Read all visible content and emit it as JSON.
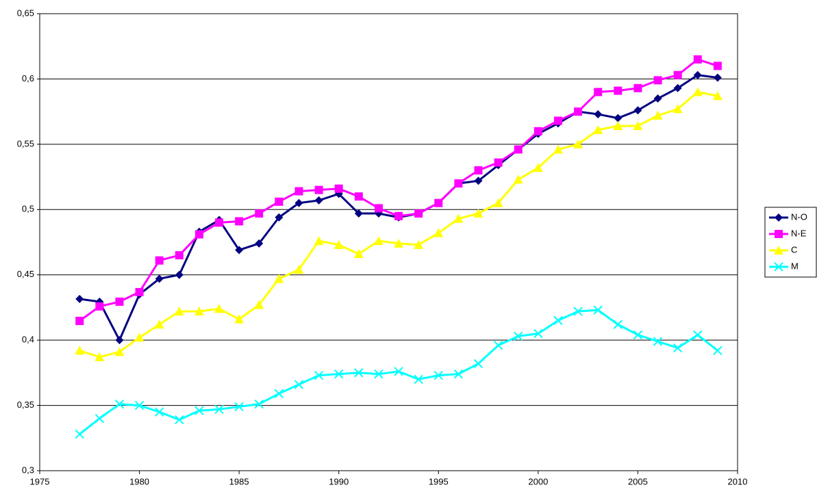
{
  "chart_data": {
    "type": "line",
    "x": [
      1977,
      1978,
      1979,
      1980,
      1981,
      1982,
      1983,
      1984,
      1985,
      1986,
      1987,
      1988,
      1989,
      1990,
      1991,
      1992,
      1993,
      1994,
      1995,
      1996,
      1997,
      1998,
      1999,
      2000,
      2001,
      2002,
      2003,
      2004,
      2005,
      2006,
      2007,
      2008,
      2009
    ],
    "series": [
      {
        "name": "N-O",
        "color": "#000080",
        "marker": "diamond",
        "values": [
          0.4315,
          0.4294,
          0.4,
          0.435,
          0.447,
          0.45,
          0.483,
          0.492,
          0.469,
          0.474,
          0.494,
          0.505,
          0.507,
          0.512,
          0.497,
          0.497,
          0.494,
          0.497,
          0.505,
          0.52,
          0.522,
          0.534,
          0.546,
          0.558,
          0.566,
          0.575,
          0.573,
          0.57,
          0.576,
          0.585,
          0.593,
          0.603,
          0.601
        ]
      },
      {
        "name": "N-E",
        "color": "#ff00ff",
        "marker": "square",
        "values": [
          0.4147,
          0.4258,
          0.4294,
          0.4368,
          0.461,
          0.465,
          0.481,
          0.49,
          0.491,
          0.497,
          0.506,
          0.514,
          0.515,
          0.516,
          0.51,
          0.501,
          0.495,
          0.497,
          0.505,
          0.52,
          0.53,
          0.536,
          0.546,
          0.56,
          0.568,
          0.575,
          0.59,
          0.591,
          0.593,
          0.599,
          0.603,
          0.615,
          0.61
        ]
      },
      {
        "name": "C",
        "color": "#ffff00",
        "marker": "triangle",
        "values": [
          0.392,
          0.387,
          0.391,
          0.402,
          0.412,
          0.422,
          0.422,
          0.424,
          0.416,
          0.427,
          0.447,
          0.454,
          0.476,
          0.473,
          0.466,
          0.476,
          0.474,
          0.473,
          0.482,
          0.493,
          0.497,
          0.505,
          0.523,
          0.532,
          0.546,
          0.55,
          0.561,
          0.564,
          0.564,
          0.572,
          0.577,
          0.59,
          0.587
        ]
      },
      {
        "name": "M",
        "color": "#00ffff",
        "marker": "x",
        "values": [
          0.328,
          0.34,
          0.351,
          0.35,
          0.345,
          0.339,
          0.346,
          0.347,
          0.349,
          0.351,
          0.359,
          0.366,
          0.373,
          0.374,
          0.375,
          0.374,
          0.376,
          0.37,
          0.373,
          0.374,
          0.382,
          0.396,
          0.403,
          0.405,
          0.415,
          0.422,
          0.423,
          0.412,
          0.404,
          0.399,
          0.394,
          0.404,
          0.392
        ]
      }
    ],
    "xlim": [
      1975,
      2010
    ],
    "xticks": [
      1975,
      1980,
      1985,
      1990,
      1995,
      2000,
      2005,
      2010
    ],
    "ylim": [
      0.3,
      0.65
    ],
    "yticks": [
      {
        "value": 0.3,
        "label": "0,3"
      },
      {
        "value": 0.35,
        "label": "0,35"
      },
      {
        "value": 0.4,
        "label": "0,4"
      },
      {
        "value": 0.45,
        "label": "0,45"
      },
      {
        "value": 0.5,
        "label": "0,5"
      },
      {
        "value": 0.55,
        "label": "0,55"
      },
      {
        "value": 0.6,
        "label": "0,6"
      },
      {
        "value": 0.65,
        "label": "0,65"
      }
    ],
    "grid": true,
    "legend": "right"
  }
}
